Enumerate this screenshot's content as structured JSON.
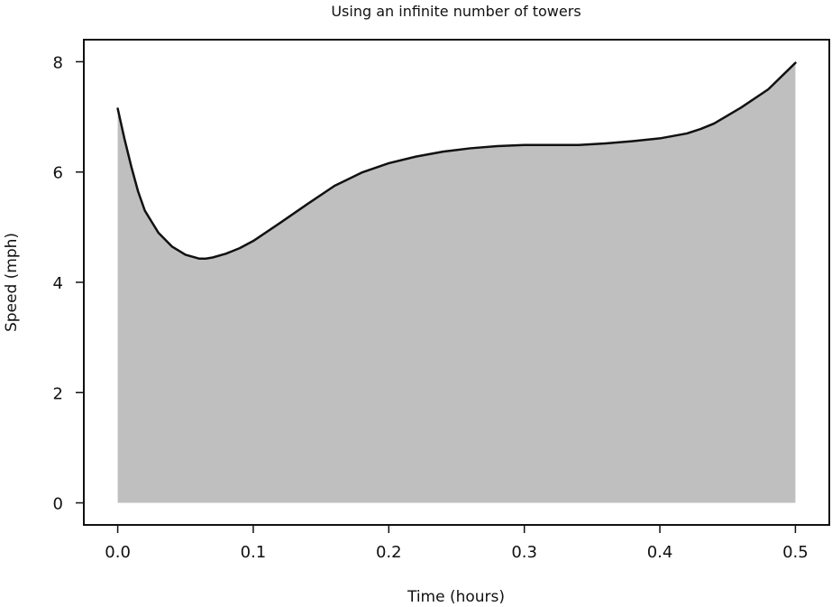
{
  "chart_data": {
    "type": "area",
    "title": "Using an infinite number of towers",
    "xlabel": "Time (hours)",
    "ylabel": "Speed (mph)",
    "xlim": [
      -0.025,
      0.525
    ],
    "ylim": [
      -0.4,
      8.4
    ],
    "xticks": [
      0.0,
      0.1,
      0.2,
      0.3,
      0.4,
      0.5
    ],
    "xtick_labels": [
      "0.0",
      "0.1",
      "0.2",
      "0.3",
      "0.4",
      "0.5"
    ],
    "yticks": [
      0,
      2,
      4,
      6,
      8
    ],
    "ytick_labels": [
      "0",
      "2",
      "4",
      "6",
      "8"
    ],
    "grid": false,
    "fill_color": "#bfbfbf",
    "line_color": "#111111",
    "series": [
      {
        "x": [
          0.0,
          0.005,
          0.01,
          0.015,
          0.02,
          0.025,
          0.03,
          0.04,
          0.05,
          0.06,
          0.065,
          0.07,
          0.08,
          0.09,
          0.1,
          0.12,
          0.14,
          0.16,
          0.18,
          0.2,
          0.22,
          0.24,
          0.26,
          0.28,
          0.3,
          0.32,
          0.34,
          0.36,
          0.38,
          0.4,
          0.42,
          0.43,
          0.44,
          0.46,
          0.48,
          0.5
        ],
        "y": [
          7.15,
          6.6,
          6.1,
          5.65,
          5.3,
          5.1,
          4.9,
          4.65,
          4.5,
          4.43,
          4.43,
          4.45,
          4.52,
          4.62,
          4.75,
          5.08,
          5.42,
          5.75,
          5.99,
          6.16,
          6.28,
          6.37,
          6.43,
          6.47,
          6.49,
          6.49,
          6.49,
          6.52,
          6.56,
          6.61,
          6.7,
          6.78,
          6.88,
          7.17,
          7.5,
          7.98
        ]
      }
    ]
  }
}
